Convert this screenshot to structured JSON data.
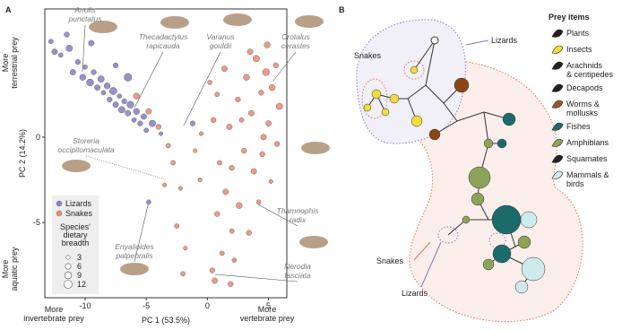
{
  "chart_data": {
    "type": "scatter",
    "panel_label": "A",
    "x_label": "PC 1 (53.5%)",
    "y_label": "PC 2 (14.2%)",
    "x_end_labels": [
      {
        "lines": [
          "More",
          "invertebrate prey"
        ]
      },
      {
        "lines": [
          "More",
          "vertebrate prey"
        ]
      }
    ],
    "y_end_labels": [
      {
        "lines": [
          "More",
          "terrestrial prey"
        ]
      },
      {
        "lines": [
          "More",
          "aquatic prey"
        ]
      }
    ],
    "xlim": [
      -13.3,
      6.5
    ],
    "ylim": [
      -9.4,
      7.5
    ],
    "xticks": [
      -10,
      -5,
      0,
      5
    ],
    "yticks": [
      0,
      -5
    ],
    "size_legend_title": {
      "lines": [
        "Species'",
        "dietary",
        "breadth"
      ]
    },
    "size_legend": [
      3,
      6,
      9,
      12
    ],
    "series": [
      {
        "name": "Lizards",
        "color": "#8c86c4",
        "x": [
          -12.5,
          -12,
          -11.3,
          -11,
          -10.6,
          -10.2,
          -10,
          -9.6,
          -9.3,
          -9,
          -8.7,
          -8.5,
          -8.2,
          -8,
          -7.7,
          -7.5,
          -7.2,
          -7,
          -6.8,
          -6.5,
          -6.3,
          -6,
          -5.8,
          -5.5,
          -5.2,
          -5,
          -4.5,
          -11.5,
          -9.5,
          -7.5,
          -3.8,
          -1.2,
          -4.8,
          -6.5,
          -12.8
        ],
        "values": [
          5.0,
          4.8,
          5.2,
          3.8,
          4.4,
          3.5,
          4.1,
          3.2,
          3.8,
          2.9,
          3.4,
          2.6,
          3.0,
          2.2,
          2.7,
          1.9,
          2.4,
          1.6,
          2.1,
          1.4,
          1.9,
          1.0,
          1.5,
          0.8,
          1.2,
          0.4,
          0.8,
          6.0,
          5.5,
          4.2,
          0.2,
          0.8,
          -3.8,
          3.5,
          5.6
        ],
        "sizes": [
          6,
          4,
          8,
          6,
          5,
          7,
          4,
          9,
          5,
          6,
          8,
          4,
          7,
          5,
          10,
          6,
          4,
          8,
          5,
          6,
          9,
          4,
          7,
          5,
          6,
          4,
          8,
          5,
          6,
          5,
          3,
          5,
          4,
          11,
          4
        ]
      },
      {
        "name": "Snakes",
        "color": "#e8907a",
        "x": [
          -5.8,
          -4.8,
          -4,
          -3.2,
          -3.5,
          -2.8,
          -2.2,
          -2.5,
          -1.8,
          -2.0,
          0.4,
          0.6,
          1.2,
          0.8,
          1.5,
          2.0,
          2.6,
          1.0,
          0.5,
          -0.5,
          0.8,
          1.8,
          2.5,
          3.2,
          3.6,
          4.0,
          4.4,
          4.8,
          5.0,
          5.3,
          5.6,
          5.9,
          3.0,
          3.8,
          4.5,
          4.2,
          5.2,
          3.4,
          2.2,
          4.6,
          2.8,
          1.4,
          0.2,
          5.7,
          -1.0,
          2.0,
          3.5,
          -0.6,
          4.9,
          1.9
        ],
        "values": [
          2.4,
          1.5,
          0.6,
          -0.5,
          -2.8,
          -1.5,
          -3.0,
          -5.2,
          -6.5,
          -8.0,
          -7.8,
          -8.4,
          -6.8,
          -4.5,
          -3.2,
          -5.5,
          -4.0,
          -1.5,
          1.0,
          0.2,
          2.5,
          0.6,
          2.2,
          3.5,
          1.4,
          4.6,
          2.6,
          3.8,
          0.8,
          2.9,
          4.2,
          1.8,
          -0.8,
          -2.0,
          -1.0,
          -3.8,
          -2.6,
          -5.6,
          -7.2,
          0.0,
          1.0,
          4.0,
          3.2,
          -0.4,
          -0.8,
          -1.8,
          5.0,
          -2.5,
          5.4,
          -8.6
        ],
        "sizes": [
          7,
          6,
          5,
          4,
          3,
          4,
          3,
          4,
          3,
          4,
          5,
          6,
          4,
          5,
          6,
          4,
          7,
          4,
          5,
          3,
          4,
          6,
          5,
          7,
          6,
          8,
          5,
          9,
          6,
          7,
          5,
          8,
          5,
          6,
          5,
          4,
          3,
          5,
          4,
          6,
          4,
          6,
          4,
          5,
          3,
          5,
          6,
          3,
          7,
          5
        ]
      }
    ],
    "annotations": [
      {
        "lines": [
          "Anolis",
          "punctatus"
        ]
      },
      {
        "lines": [
          "Thecadactylus",
          "rapicauda"
        ]
      },
      {
        "lines": [
          "Varanus",
          "gouldii"
        ]
      },
      {
        "lines": [
          "Crotalus",
          "cerastes"
        ]
      },
      {
        "lines": [
          "Storeria",
          "occipitomaculata"
        ]
      },
      {
        "lines": [
          "Thamnophis",
          "radix"
        ]
      },
      {
        "lines": [
          "Enyalioides",
          "palpebralis"
        ]
      },
      {
        "lines": [
          "Nerodia",
          "fasciata"
        ]
      }
    ]
  },
  "tree": {
    "panel_label": "B",
    "clade_labels": [
      "Snakes",
      "Lizards",
      "Snakes",
      "Lizards"
    ],
    "legend_title": "Prey items",
    "prey_items": [
      {
        "lines": [
          "Plants"
        ],
        "color": "#222222"
      },
      {
        "lines": [
          "Insects"
        ],
        "color": "#f2dc3c"
      },
      {
        "lines": [
          "Arachnids",
          "& centipedes"
        ],
        "color": "#222222"
      },
      {
        "lines": [
          "Decapods"
        ],
        "color": "#222222"
      },
      {
        "lines": [
          "Worms &",
          "mollusks"
        ],
        "color": "#a0522d"
      },
      {
        "lines": [
          "Fishes"
        ],
        "color": "#1c6b6b"
      },
      {
        "lines": [
          "Amphibians"
        ],
        "color": "#8da35a"
      },
      {
        "lines": [
          "Squamates"
        ],
        "color": "#222222"
      },
      {
        "lines": [
          "Mammals &",
          "birds"
        ],
        "color": "#cfeaec"
      }
    ]
  }
}
